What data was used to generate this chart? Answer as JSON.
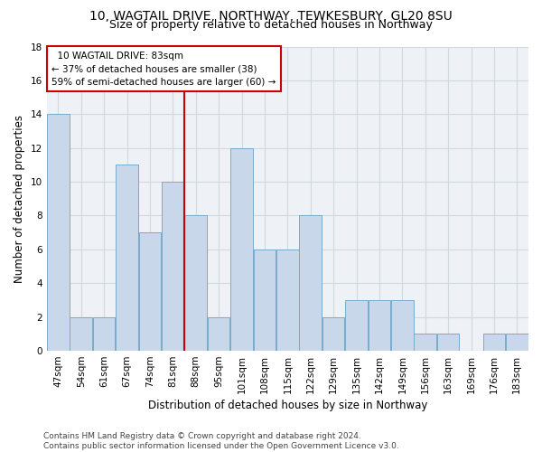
{
  "title1": "10, WAGTAIL DRIVE, NORTHWAY, TEWKESBURY, GL20 8SU",
  "title2": "Size of property relative to detached houses in Northway",
  "xlabel": "Distribution of detached houses by size in Northway",
  "ylabel": "Number of detached properties",
  "categories": [
    "47sqm",
    "54sqm",
    "61sqm",
    "67sqm",
    "74sqm",
    "81sqm",
    "88sqm",
    "95sqm",
    "101sqm",
    "108sqm",
    "115sqm",
    "122sqm",
    "129sqm",
    "135sqm",
    "142sqm",
    "149sqm",
    "156sqm",
    "163sqm",
    "169sqm",
    "176sqm",
    "183sqm"
  ],
  "values": [
    14,
    2,
    2,
    11,
    7,
    10,
    8,
    2,
    12,
    6,
    6,
    8,
    2,
    3,
    3,
    3,
    1,
    1,
    0,
    1,
    1
  ],
  "bar_color": "#c8d8ea",
  "bar_edge_color": "#7aabcc",
  "property_line_color": "#cc0000",
  "annotation_box_color": "#cc0000",
  "ylim": [
    0,
    18
  ],
  "yticks": [
    0,
    2,
    4,
    6,
    8,
    10,
    12,
    14,
    16,
    18
  ],
  "grid_color": "#d0d8e0",
  "background_color": "#eef2f6",
  "footer_text": "Contains HM Land Registry data © Crown copyright and database right 2024.\nContains public sector information licensed under the Open Government Licence v3.0.",
  "title1_fontsize": 10,
  "title2_fontsize": 9,
  "xlabel_fontsize": 8.5,
  "ylabel_fontsize": 8.5,
  "tick_fontsize": 7.5,
  "annotation_fontsize": 7.5,
  "footer_fontsize": 6.5
}
